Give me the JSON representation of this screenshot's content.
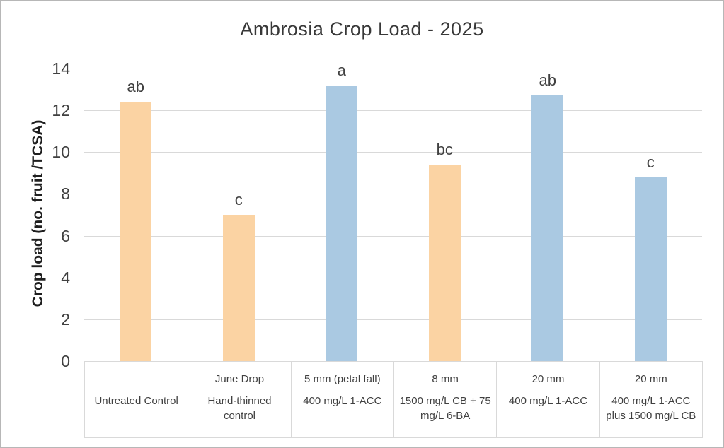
{
  "frame": {
    "background": "#ffffff",
    "border_color": "#b7b7b7"
  },
  "chart_data": {
    "type": "bar",
    "title": "Ambrosia Crop Load - 2025",
    "ylabel": "Crop load (no. fruit /TCSA)",
    "xlabel": "",
    "ylim": [
      0,
      14
    ],
    "yticks": [
      0,
      2,
      4,
      6,
      8,
      10,
      12,
      14
    ],
    "grid": true,
    "legend": "none",
    "gridline_color": "#d9d9d9",
    "category_row1": [
      "",
      "June Drop",
      "5 mm (petal fall)",
      "8 mm",
      "20 mm",
      "20 mm"
    ],
    "category_row2": [
      "Untreated Control",
      "Hand-thinned control",
      "400 mg/L 1-ACC",
      "1500 mg/L CB + 75 mg/L 6-BA",
      "400 mg/L 1-ACC",
      "400 mg/L 1-ACC plus 1500 mg/L CB"
    ],
    "values": [
      12.4,
      7.0,
      13.2,
      9.4,
      12.7,
      8.8
    ],
    "letters": [
      "ab",
      "c",
      "a",
      "bc",
      "ab",
      "c"
    ],
    "bar_colors": [
      "#fbd3a3",
      "#fbd3a3",
      "#aac9e2",
      "#fbd3a3",
      "#aac9e2",
      "#aac9e2"
    ],
    "color_orange": "#fbd3a3",
    "color_blue": "#aac9e2"
  }
}
